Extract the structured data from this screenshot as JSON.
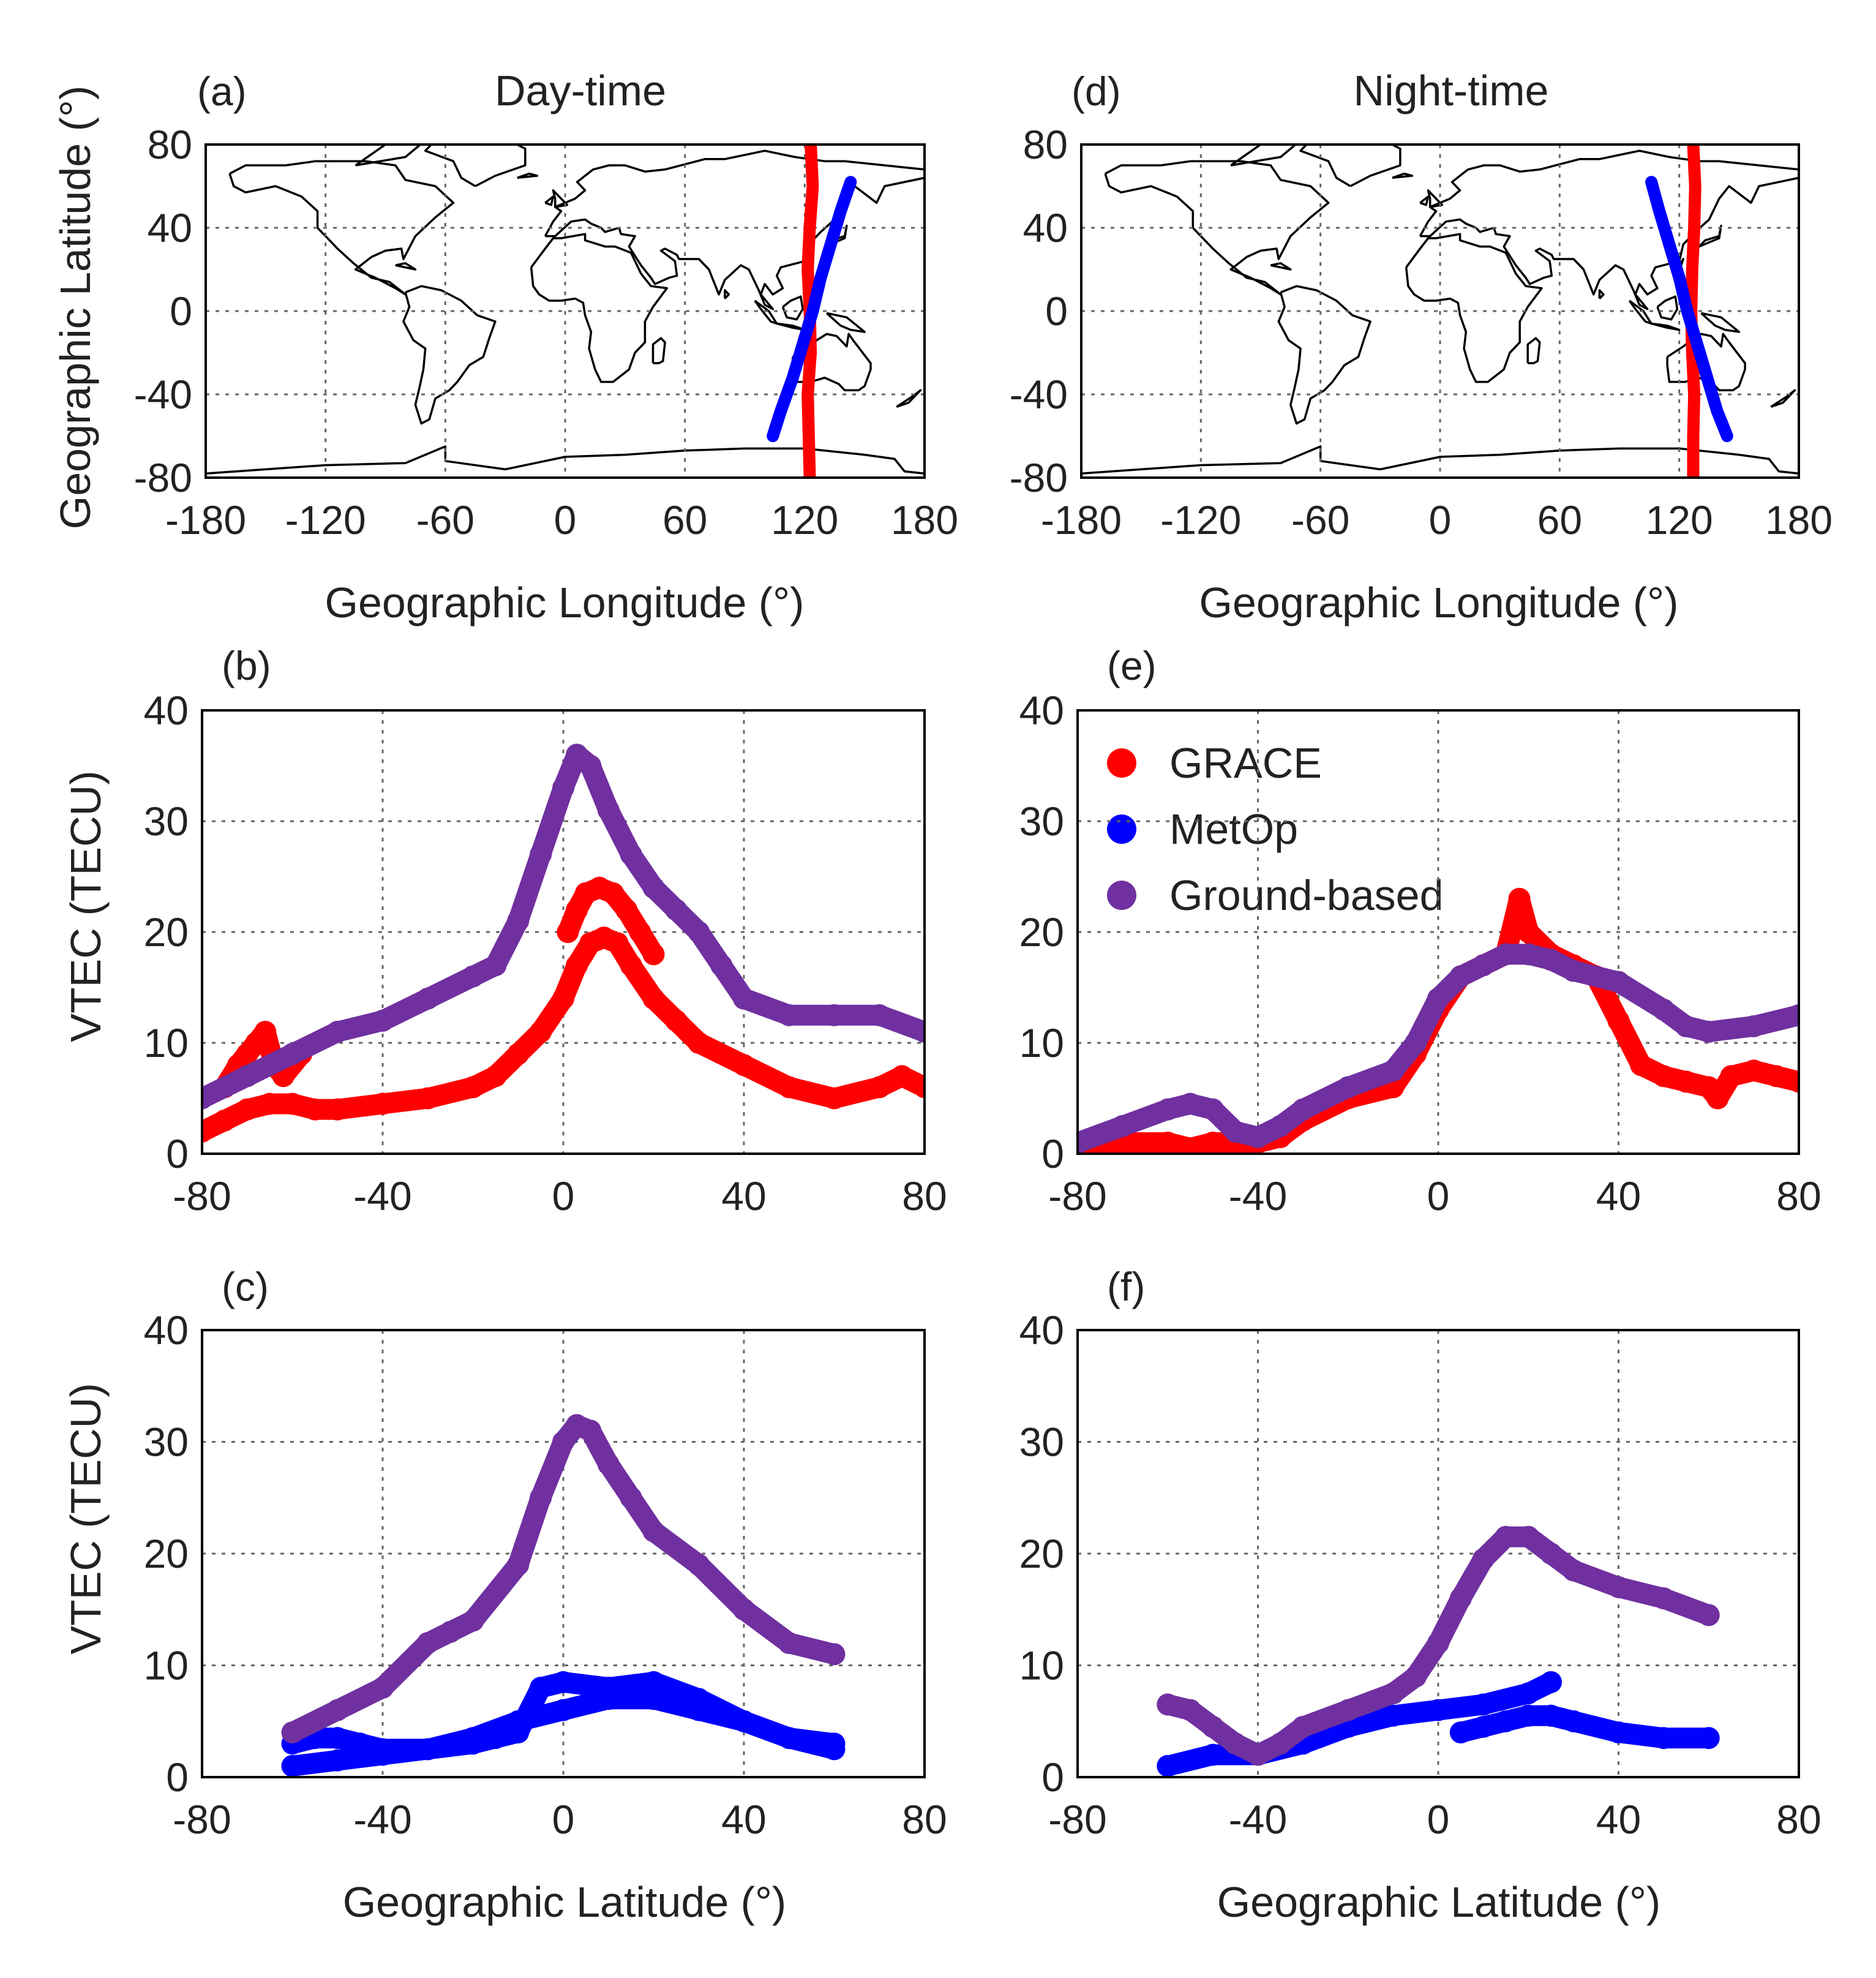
{
  "colors": {
    "grace": "#ff0000",
    "metop": "#0000ff",
    "ground": "#7030a0"
  },
  "legend": [
    {
      "key": "grace",
      "label": "GRACE",
      "color": "#ff0000"
    },
    {
      "key": "metop",
      "label": "MetOp",
      "color": "#0000ff"
    },
    {
      "key": "ground",
      "label": "Ground-based",
      "color": "#7030a0"
    }
  ],
  "chart_data": [
    {
      "id": "a",
      "panel_label": "(a)",
      "title": "Day-time",
      "type": "line",
      "xlabel": "Geographic Longitude (°)",
      "ylabel": "Geographic Latitude (°)",
      "xlim": [
        -180,
        180
      ],
      "ylim": [
        -80,
        80
      ],
      "xticks": [
        -180,
        -120,
        -60,
        0,
        60,
        120,
        180
      ],
      "yticks": [
        80,
        40,
        0,
        -40,
        -80
      ],
      "grid": true,
      "background": "world coastlines",
      "series": [
        {
          "key": "grace",
          "color": "#ff0000",
          "x": [
            123,
            124,
            122.5,
            121.5,
            122.5,
            123,
            121.5,
            122,
            122.5
          ],
          "y": [
            80,
            60,
            40,
            20,
            0,
            -20,
            -40,
            -60,
            -80
          ]
        },
        {
          "key": "metop",
          "color": "#0000ff",
          "x": [
            143,
            138,
            133,
            128,
            124,
            119,
            114,
            108,
            104
          ],
          "y": [
            62,
            48,
            32,
            16,
            0,
            -16,
            -32,
            -48,
            -60
          ]
        }
      ]
    },
    {
      "id": "b",
      "panel_label": "(b)",
      "title": "",
      "type": "scatter",
      "xlabel": "",
      "ylabel": "VTEC (TECU)",
      "xlim": [
        -80,
        80
      ],
      "ylim": [
        0,
        40
      ],
      "xticks": [
        -80,
        -40,
        0,
        40,
        80
      ],
      "yticks": [
        0,
        10,
        20,
        30,
        40
      ],
      "grid": true,
      "series": [
        {
          "key": "grace",
          "color": "#ff0000",
          "x": [
            -80,
            -75,
            -70,
            -65,
            -60,
            -55,
            -50,
            -40,
            -30,
            -20,
            -15,
            -10,
            -5,
            0,
            3,
            6,
            9,
            12,
            15,
            20,
            25,
            30,
            40,
            50,
            60,
            70,
            75,
            80
          ],
          "y": [
            2,
            3,
            4,
            4.5,
            4.5,
            4,
            4,
            4.5,
            5,
            6,
            7,
            9,
            11,
            14,
            17,
            19,
            19.5,
            19,
            17,
            14,
            12,
            10,
            8,
            6,
            5,
            6,
            7,
            6
          ]
        },
        {
          "key": "grace",
          "color": "#ff0000",
          "x": [
            -75,
            -72,
            -70,
            -68,
            -66,
            -64,
            -62,
            -58
          ],
          "y": [
            6,
            8,
            9,
            10,
            11,
            8,
            7,
            9
          ]
        },
        {
          "key": "grace",
          "color": "#ff0000",
          "x": [
            1,
            3,
            5,
            8,
            11,
            14,
            17,
            20
          ],
          "y": [
            20,
            22,
            23.5,
            24,
            23.5,
            22,
            20,
            18
          ]
        },
        {
          "key": "ground",
          "color": "#7030a0",
          "x": [
            -80,
            -70,
            -60,
            -50,
            -40,
            -30,
            -20,
            -15,
            -10,
            -5,
            0,
            3,
            6,
            10,
            15,
            20,
            25,
            30,
            35,
            40,
            50,
            60,
            70,
            80
          ],
          "y": [
            5,
            7,
            9,
            11,
            12,
            14,
            16,
            17,
            21,
            27,
            33,
            36,
            35,
            31,
            27,
            24,
            22,
            20,
            17,
            14,
            12.5,
            12.5,
            12.5,
            11
          ]
        }
      ]
    },
    {
      "id": "c",
      "panel_label": "(c)",
      "title": "",
      "type": "scatter",
      "xlabel": "Geographic Latitude (°)",
      "ylabel": "VTEC (TECU)",
      "xlim": [
        -80,
        80
      ],
      "ylim": [
        0,
        40
      ],
      "xticks": [
        -80,
        -40,
        0,
        40,
        80
      ],
      "yticks": [
        0,
        10,
        20,
        30,
        40
      ],
      "grid": true,
      "series": [
        {
          "key": "metop",
          "color": "#0000ff",
          "x": [
            -60,
            -50,
            -40,
            -30,
            -20,
            -10,
            0,
            10,
            20,
            30,
            40,
            50,
            60
          ],
          "y": [
            1,
            1.5,
            2,
            2.5,
            3.5,
            5,
            6,
            7,
            7,
            6,
            5,
            3.5,
            2.5
          ]
        },
        {
          "key": "metop",
          "color": "#0000ff",
          "x": [
            -60,
            -55,
            -50,
            -45,
            -40,
            -30,
            -20,
            -15,
            -10,
            -5,
            0,
            10,
            20,
            30,
            40,
            50,
            60
          ],
          "y": [
            3,
            3.5,
            3.5,
            3,
            2.5,
            2.5,
            3,
            3.5,
            4,
            8,
            8.5,
            8,
            8.5,
            7,
            5,
            3.5,
            3
          ]
        },
        {
          "key": "ground",
          "color": "#7030a0",
          "x": [
            -60,
            -50,
            -40,
            -30,
            -25,
            -20,
            -10,
            -5,
            0,
            3,
            6,
            10,
            15,
            20,
            30,
            40,
            50,
            60
          ],
          "y": [
            4,
            6,
            8,
            12,
            13,
            14,
            19,
            25,
            30,
            31.5,
            31,
            28,
            25,
            22,
            19,
            15,
            12,
            11
          ]
        }
      ]
    },
    {
      "id": "d",
      "panel_label": "(d)",
      "title": "Night-time",
      "type": "line",
      "xlabel": "Geographic Longitude (°)",
      "ylabel": "",
      "xlim": [
        -180,
        180
      ],
      "ylim": [
        -80,
        80
      ],
      "xticks": [
        -180,
        -120,
        -60,
        0,
        60,
        120,
        180
      ],
      "yticks": [
        80,
        40,
        0,
        -40,
        -80
      ],
      "grid": true,
      "background": "world coastlines",
      "series": [
        {
          "key": "grace",
          "color": "#ff0000",
          "x": [
            127,
            128,
            127.5,
            126.5,
            126,
            126.5,
            127.5,
            127,
            127
          ],
          "y": [
            80,
            60,
            40,
            20,
            0,
            -20,
            -40,
            -60,
            -80
          ]
        },
        {
          "key": "metop",
          "color": "#0000ff",
          "x": [
            106,
            110,
            115,
            120,
            124,
            129,
            134,
            139,
            144
          ],
          "y": [
            62,
            48,
            32,
            16,
            0,
            -16,
            -32,
            -48,
            -60
          ]
        }
      ]
    },
    {
      "id": "e",
      "panel_label": "(e)",
      "title": "",
      "type": "scatter",
      "xlabel": "",
      "ylabel": "",
      "xlim": [
        -80,
        80
      ],
      "ylim": [
        0,
        40
      ],
      "xticks": [
        -80,
        -40,
        0,
        40,
        80
      ],
      "yticks": [
        0,
        10,
        20,
        30,
        40
      ],
      "grid": true,
      "series": [
        {
          "key": "grace",
          "color": "#ff0000",
          "x": [
            -80,
            -70,
            -60,
            -55,
            -50,
            -45,
            -40,
            -35,
            -30,
            -20,
            -10,
            -5,
            0,
            5,
            10,
            15,
            18,
            20,
            25,
            30,
            35,
            40,
            45,
            50,
            55,
            60,
            62,
            65,
            70,
            75,
            80
          ],
          "y": [
            1,
            1,
            1,
            0.5,
            1,
            1,
            1,
            1.5,
            3,
            5,
            6,
            9,
            13,
            16,
            17,
            18,
            23,
            20,
            18,
            17,
            16,
            12,
            8,
            7,
            6.5,
            6,
            5,
            7,
            7.5,
            7,
            6.5
          ]
        },
        {
          "key": "ground",
          "color": "#7030a0",
          "x": [
            -80,
            -70,
            -60,
            -55,
            -50,
            -45,
            -40,
            -35,
            -30,
            -20,
            -10,
            -5,
            0,
            5,
            10,
            15,
            20,
            25,
            30,
            40,
            50,
            55,
            60,
            70,
            80
          ],
          "y": [
            1,
            2.5,
            4,
            4.5,
            4,
            2,
            1.5,
            2.5,
            4,
            6,
            7.5,
            10,
            14,
            16,
            17,
            18,
            18,
            17.5,
            16.5,
            15.5,
            13,
            11.5,
            11,
            11.5,
            12.5
          ]
        }
      ]
    },
    {
      "id": "f",
      "panel_label": "(f)",
      "title": "",
      "type": "scatter",
      "xlabel": "Geographic Latitude (°)",
      "ylabel": "",
      "xlim": [
        -80,
        80
      ],
      "ylim": [
        0,
        40
      ],
      "xticks": [
        -80,
        -40,
        0,
        40,
        80
      ],
      "yticks": [
        0,
        10,
        20,
        30,
        40
      ],
      "grid": true,
      "series": [
        {
          "key": "metop",
          "color": "#0000ff",
          "x": [
            -60,
            -50,
            -40,
            -30,
            -20,
            -10,
            0,
            10,
            20,
            25
          ],
          "y": [
            1,
            2,
            2,
            3,
            4.5,
            5.5,
            6,
            6.5,
            7.5,
            8.5
          ]
        },
        {
          "key": "metop",
          "color": "#0000ff",
          "x": [
            5,
            10,
            15,
            20,
            25,
            30,
            40,
            50,
            60
          ],
          "y": [
            4,
            4.5,
            5,
            5.5,
            5.5,
            5,
            4,
            3.5,
            3.5
          ]
        },
        {
          "key": "ground",
          "color": "#7030a0",
          "x": [
            -60,
            -55,
            -50,
            -45,
            -40,
            -35,
            -30,
            -20,
            -10,
            -5,
            0,
            5,
            10,
            15,
            20,
            25,
            30,
            40,
            50,
            60
          ],
          "y": [
            6.5,
            6,
            4.5,
            3,
            2,
            3,
            4.5,
            6,
            7.5,
            9,
            12,
            16,
            19.5,
            21.5,
            21.5,
            20,
            18.5,
            17,
            16,
            14.5
          ]
        }
      ]
    }
  ]
}
